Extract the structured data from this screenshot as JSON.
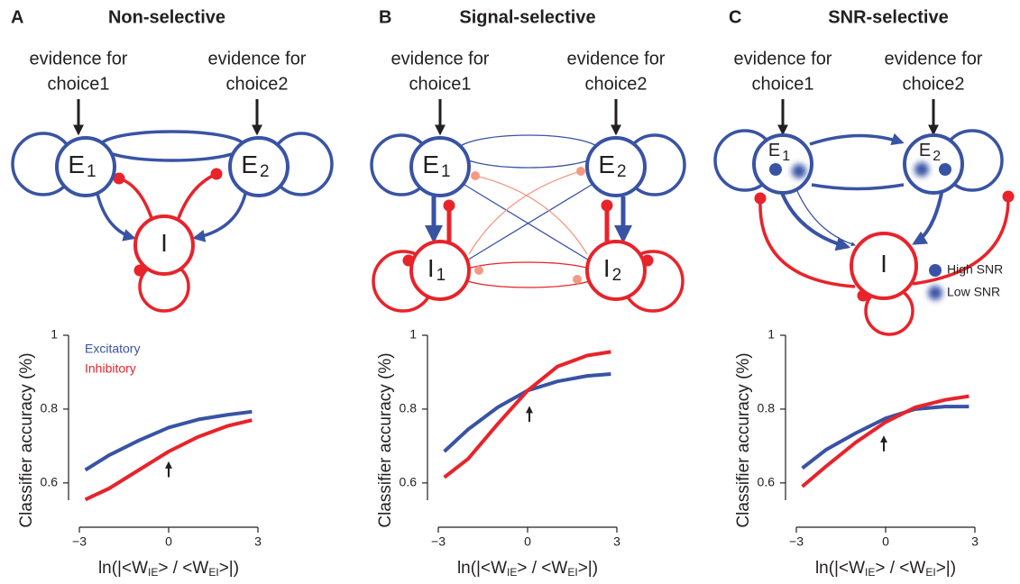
{
  "panels": [
    {
      "label": "A",
      "title": "Non-selective",
      "inputs": [
        [
          "evidence for",
          "choice1"
        ],
        [
          "evidence for",
          "choice2"
        ]
      ],
      "nodes": [
        {
          "label": "E",
          "sub": "1"
        },
        {
          "label": "E",
          "sub": "2"
        },
        {
          "label": "I"
        }
      ]
    },
    {
      "label": "B",
      "title": "Signal-selective",
      "inputs": [
        [
          "evidence for",
          "choice1"
        ],
        [
          "evidence for",
          "choice2"
        ]
      ],
      "nodes": [
        {
          "label": "E",
          "sub": "1"
        },
        {
          "label": "E",
          "sub": "2"
        },
        {
          "label": "I",
          "sub": "1"
        },
        {
          "label": "I",
          "sub": "2"
        }
      ]
    },
    {
      "label": "C",
      "title": "SNR-selective",
      "inputs": [
        [
          "evidence for",
          "choice1"
        ],
        [
          "evidence for",
          "choice2"
        ]
      ],
      "nodes": [
        {
          "label": "E",
          "sub": "1"
        },
        {
          "label": "E",
          "sub": "2"
        },
        {
          "label": "I"
        }
      ],
      "legend": [
        "High SNR",
        "Low SNR"
      ]
    }
  ],
  "chart_data": [
    {
      "type": "line",
      "ylabel": "Classifier accuracy (%)",
      "xlabel": [
        "ln(|<W",
        "IE",
        "> / <W",
        "EI",
        ">|)"
      ],
      "x": [
        -2.8,
        -2,
        -1,
        0,
        1,
        2,
        2.8
      ],
      "xlim": [
        -3,
        3
      ],
      "ylim": [
        0.48,
        1
      ],
      "xticks": [
        {
          "value": -3,
          "label": "−3"
        },
        0,
        3
      ],
      "yticks": [
        0.6,
        0.8,
        1
      ],
      "legend": "upper left",
      "series": [
        {
          "name": "Excitatory",
          "color": "#3953a4",
          "values": [
            0.635,
            0.675,
            0.715,
            0.75,
            0.772,
            0.785,
            0.793
          ]
        },
        {
          "name": "Inhibitory",
          "color": "#e8232a",
          "values": [
            0.555,
            0.585,
            0.635,
            0.685,
            0.725,
            0.755,
            0.77
          ]
        }
      ]
    },
    {
      "type": "line",
      "ylabel": "Classifier accuracy (%)",
      "xlabel": [
        "ln(|<W",
        "IE",
        "> / <W",
        "EI",
        ">|)"
      ],
      "x": [
        -2.8,
        -2,
        -1,
        0,
        1,
        2,
        2.8
      ],
      "xlim": [
        -3,
        3
      ],
      "ylim": [
        0.48,
        1
      ],
      "xticks": [
        {
          "value": -3,
          "label": "−3"
        },
        0,
        3
      ],
      "yticks": [
        0.6,
        0.8,
        1
      ],
      "series": [
        {
          "color": "#3953a4",
          "values": [
            0.685,
            0.745,
            0.805,
            0.85,
            0.875,
            0.89,
            0.895
          ]
        },
        {
          "color": "#e8232a",
          "values": [
            0.615,
            0.665,
            0.76,
            0.85,
            0.915,
            0.945,
            0.955
          ]
        }
      ]
    },
    {
      "type": "line",
      "ylabel": "Classifier accuracy (%)",
      "xlabel": [
        "ln(|<W",
        "IE",
        "> / <W",
        "EI",
        ">|)"
      ],
      "x": [
        -2.8,
        -2,
        -1,
        0,
        1,
        2,
        2.8
      ],
      "xlim": [
        -3,
        3
      ],
      "ylim": [
        0.48,
        1
      ],
      "xticks": [
        {
          "value": -3,
          "label": "−3"
        },
        0,
        3
      ],
      "yticks": [
        0.6,
        0.8,
        1
      ],
      "series": [
        {
          "color": "#3953a4",
          "values": [
            0.64,
            0.69,
            0.735,
            0.775,
            0.8,
            0.807,
            0.807
          ]
        },
        {
          "color": "#e8232a",
          "values": [
            0.59,
            0.645,
            0.71,
            0.765,
            0.805,
            0.825,
            0.835
          ]
        }
      ]
    }
  ]
}
